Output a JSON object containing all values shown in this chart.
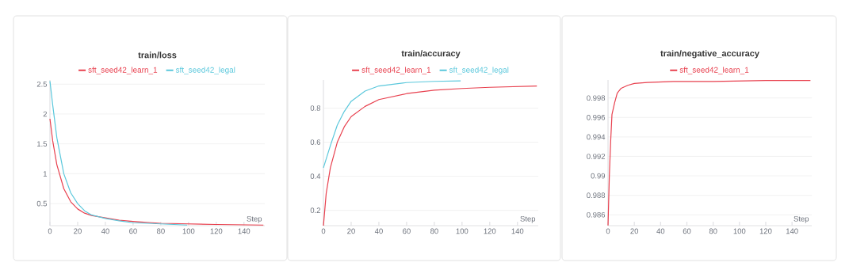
{
  "chart_data": [
    {
      "type": "line",
      "title": "train/loss",
      "xlabel": "Step",
      "xlim": [
        0,
        155
      ],
      "xticks": [
        0,
        20,
        40,
        60,
        80,
        100,
        120,
        140
      ],
      "ylim": [
        0.13,
        2.57
      ],
      "yticks": [
        0.5,
        1,
        1.5,
        2,
        2.5
      ],
      "grid": "y",
      "legend": "top",
      "series": [
        {
          "name": "sft_seed42_learn_1",
          "color": "#e8414f",
          "x": [
            0,
            2,
            5,
            10,
            15,
            20,
            25,
            30,
            40,
            50,
            60,
            80,
            100,
            120,
            154
          ],
          "values": [
            1.92,
            1.55,
            1.15,
            0.75,
            0.53,
            0.41,
            0.34,
            0.3,
            0.26,
            0.22,
            0.2,
            0.17,
            0.16,
            0.15,
            0.14
          ]
        },
        {
          "name": "sft_seed42_legal",
          "color": "#5bc8dc",
          "x": [
            0,
            2,
            5,
            10,
            15,
            20,
            25,
            30,
            40,
            50,
            60,
            80,
            99
          ],
          "values": [
            2.55,
            2.15,
            1.6,
            1.0,
            0.68,
            0.5,
            0.38,
            0.31,
            0.25,
            0.21,
            0.18,
            0.16,
            0.14
          ]
        }
      ]
    },
    {
      "type": "line",
      "title": "train/accuracy",
      "xlabel": "Step",
      "xlim": [
        0,
        155
      ],
      "xticks": [
        0,
        20,
        40,
        60,
        80,
        100,
        120,
        140
      ],
      "ylim": [
        0.11,
        0.965
      ],
      "yticks": [
        0.2,
        0.4,
        0.6,
        0.8
      ],
      "grid": "y",
      "legend": "top",
      "series": [
        {
          "name": "sft_seed42_learn_1",
          "color": "#e8414f",
          "x": [
            0,
            2,
            5,
            10,
            15,
            20,
            30,
            40,
            60,
            80,
            100,
            120,
            154
          ],
          "values": [
            0.11,
            0.3,
            0.45,
            0.6,
            0.69,
            0.75,
            0.81,
            0.85,
            0.885,
            0.905,
            0.915,
            0.922,
            0.93
          ]
        },
        {
          "name": "sft_seed42_legal",
          "color": "#5bc8dc",
          "x": [
            0,
            5,
            10,
            15,
            20,
            30,
            40,
            60,
            80,
            99
          ],
          "values": [
            0.45,
            0.58,
            0.7,
            0.78,
            0.84,
            0.9,
            0.93,
            0.95,
            0.957,
            0.96
          ]
        }
      ]
    },
    {
      "type": "line",
      "title": "train/negative_accuracy",
      "xlabel": "Step",
      "xlim": [
        0,
        155
      ],
      "xticks": [
        0,
        20,
        40,
        60,
        80,
        100,
        120,
        140
      ],
      "ylim": [
        0.98488,
        0.99985
      ],
      "yticks": [
        0.986,
        0.988,
        0.99,
        0.992,
        0.994,
        0.996,
        0.998
      ],
      "grid": "y",
      "legend": "top",
      "series": [
        {
          "name": "sft_seed42_learn_1",
          "color": "#e8414f",
          "x": [
            0,
            1,
            2,
            3,
            5,
            7,
            10,
            15,
            20,
            30,
            50,
            80,
            120,
            154
          ],
          "values": [
            0.9849,
            0.99,
            0.9935,
            0.9963,
            0.9975,
            0.9985,
            0.999,
            0.9993,
            0.9995,
            0.9996,
            0.9997,
            0.9997,
            0.9998,
            0.9998
          ]
        }
      ]
    }
  ]
}
